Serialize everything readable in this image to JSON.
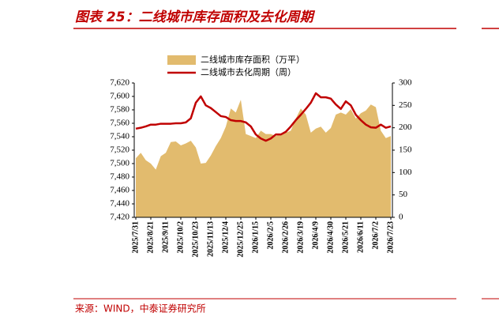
{
  "chart_data": {
    "type": "area",
    "title": "图表 25：二线城市库存面积及去化周期",
    "source": "来源：WIND，中泰证券研究所",
    "categories": [
      "2025/7/31",
      null,
      null,
      "2025/8/21",
      null,
      null,
      "2025/9/11",
      null,
      null,
      "2025/10/2",
      null,
      null,
      "2025/10/23",
      null,
      null,
      "2025/11/13",
      null,
      null,
      "2025/12/4",
      null,
      null,
      "2025/12/25",
      null,
      null,
      "2026/1/15",
      null,
      null,
      "2026/2/5",
      null,
      null,
      "2026/2/26",
      null,
      null,
      "2026/3/19",
      null,
      null,
      "2026/4/9",
      null,
      null,
      "2026/4/30",
      null,
      null,
      "2026/5/21",
      null,
      null,
      "2026/6/11",
      null,
      null,
      "2026/7/2",
      null,
      null,
      "2026/7/23"
    ],
    "series": [
      {
        "name": "二线城市库存面积（万平）",
        "type": "area",
        "color": "#e2bb6e",
        "values": [
          7508,
          7516,
          7505,
          7500,
          7491,
          7511,
          7516,
          7532,
          7533,
          7527,
          7530,
          7534,
          7524,
          7500,
          7501,
          7512,
          7526,
          7538,
          7555,
          7582,
          7576,
          7595,
          7544,
          7541,
          7538,
          7549,
          7544,
          7544,
          7541,
          7544,
          7546,
          7549,
          7567,
          7582,
          7573,
          7546,
          7552,
          7555,
          7546,
          7553,
          7573,
          7576,
          7573,
          7581,
          7567,
          7575,
          7579,
          7588,
          7584,
          7549,
          7538,
          7541
        ]
      },
      {
        "name": "二线城市去化周期（周）",
        "type": "line",
        "axis": "y2",
        "color": "#c00000",
        "values": [
          198,
          200,
          203,
          207,
          207,
          209,
          209,
          209,
          210,
          210,
          212,
          221,
          256,
          270,
          250,
          244,
          235,
          226,
          224,
          217,
          215,
          215,
          212,
          203,
          185,
          176,
          171,
          176,
          185,
          185,
          191,
          203,
          217,
          229,
          242,
          256,
          277,
          268,
          268,
          265,
          252,
          242,
          259,
          250,
          229,
          217,
          207,
          201,
          200,
          207,
          200,
          203
        ]
      }
    ],
    "ylim": [
      7420,
      7620
    ],
    "yticks": [
      {
        "value": 7420,
        "label": "7,420"
      },
      {
        "value": 7440,
        "label": "7,440"
      },
      {
        "value": 7460,
        "label": "7,460"
      },
      {
        "value": 7480,
        "label": "7,480"
      },
      {
        "value": 7500,
        "label": "7,500"
      },
      {
        "value": 7520,
        "label": "7,520"
      },
      {
        "value": 7540,
        "label": "7,540"
      },
      {
        "value": 7560,
        "label": "7,560"
      },
      {
        "value": 7580,
        "label": "7,580"
      },
      {
        "value": 7600,
        "label": "7,600"
      },
      {
        "value": 7620,
        "label": "7,620"
      }
    ],
    "y2lim": [
      0,
      300
    ],
    "y2ticks": [
      0,
      50,
      100,
      150,
      200,
      250,
      300
    ]
  }
}
